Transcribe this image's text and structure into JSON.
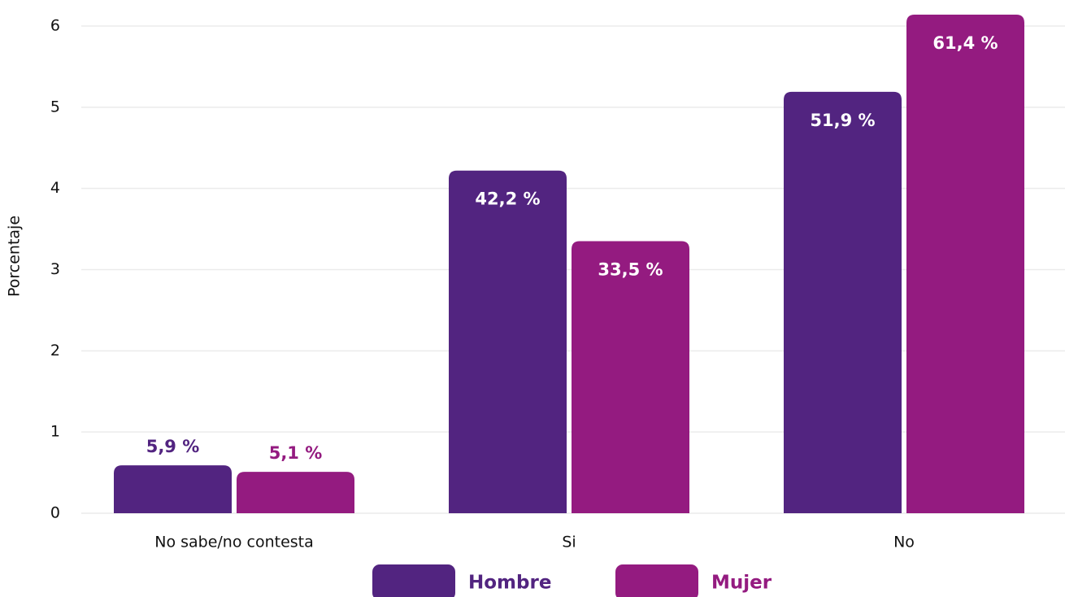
{
  "chart_data": {
    "type": "bar",
    "y_label": "Porcentaje",
    "categories": [
      "No sabe/no contesta",
      "Si",
      "No"
    ],
    "series": [
      {
        "name": "Hombre",
        "color": "#522480",
        "values": [
          0.59,
          4.22,
          5.19
        ],
        "value_labels": [
          "5,9 %",
          "42,2 %",
          "51,9 %"
        ]
      },
      {
        "name": "Mujer",
        "color": "#941b80",
        "values": [
          0.51,
          3.35,
          6.14
        ],
        "value_labels": [
          "5,1 %",
          "33,5 %",
          "61,4 %"
        ]
      }
    ],
    "ylim": [
      0,
      6
    ],
    "yticks": [
      0,
      1,
      2,
      3,
      4,
      5,
      6
    ],
    "grid": true,
    "legend": "bottom"
  }
}
